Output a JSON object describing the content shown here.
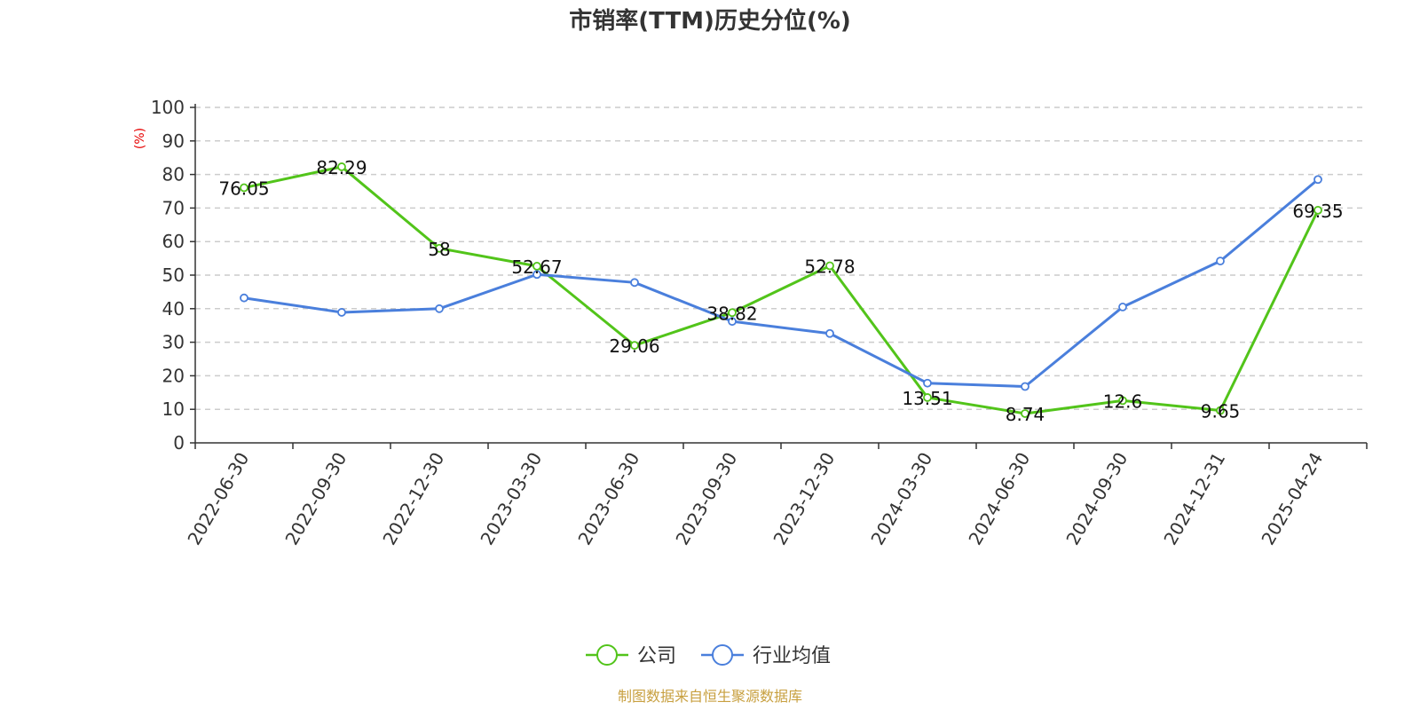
{
  "chart_data": {
    "type": "line",
    "title": "市销率(TTM)历史分位(%)",
    "ylabel": "(%)",
    "xlabel": "",
    "ylim": [
      0,
      100
    ],
    "yticks": [
      0,
      10,
      20,
      30,
      40,
      50,
      60,
      70,
      80,
      90,
      100
    ],
    "grid": true,
    "legend_position": "bottom",
    "categories": [
      "2022-06-30",
      "2022-09-30",
      "2022-12-30",
      "2023-03-30",
      "2023-06-30",
      "2023-09-30",
      "2023-12-30",
      "2024-03-30",
      "2024-06-30",
      "2024-09-30",
      "2024-12-31",
      "2025-04-24"
    ],
    "series": [
      {
        "name": "公司",
        "color": "#52c41a",
        "values": [
          76.05,
          82.29,
          58,
          52.67,
          29.06,
          38.82,
          52.78,
          13.51,
          8.74,
          12.6,
          9.65,
          69.35
        ],
        "labels": [
          "76.05",
          "82.29",
          "58",
          "52.67",
          "29.06",
          "38.82",
          "52.78",
          "13.51",
          "8.74",
          "12.6",
          "9.65",
          "69.35"
        ]
      },
      {
        "name": "行业均值",
        "color": "#4a7fdc",
        "values": [
          43.2,
          38.9,
          40.0,
          50.2,
          47.8,
          36.2,
          32.6,
          17.8,
          16.8,
          40.5,
          54.2,
          78.5
        ]
      }
    ]
  },
  "source": "制图数据来自恒生聚源数据库"
}
